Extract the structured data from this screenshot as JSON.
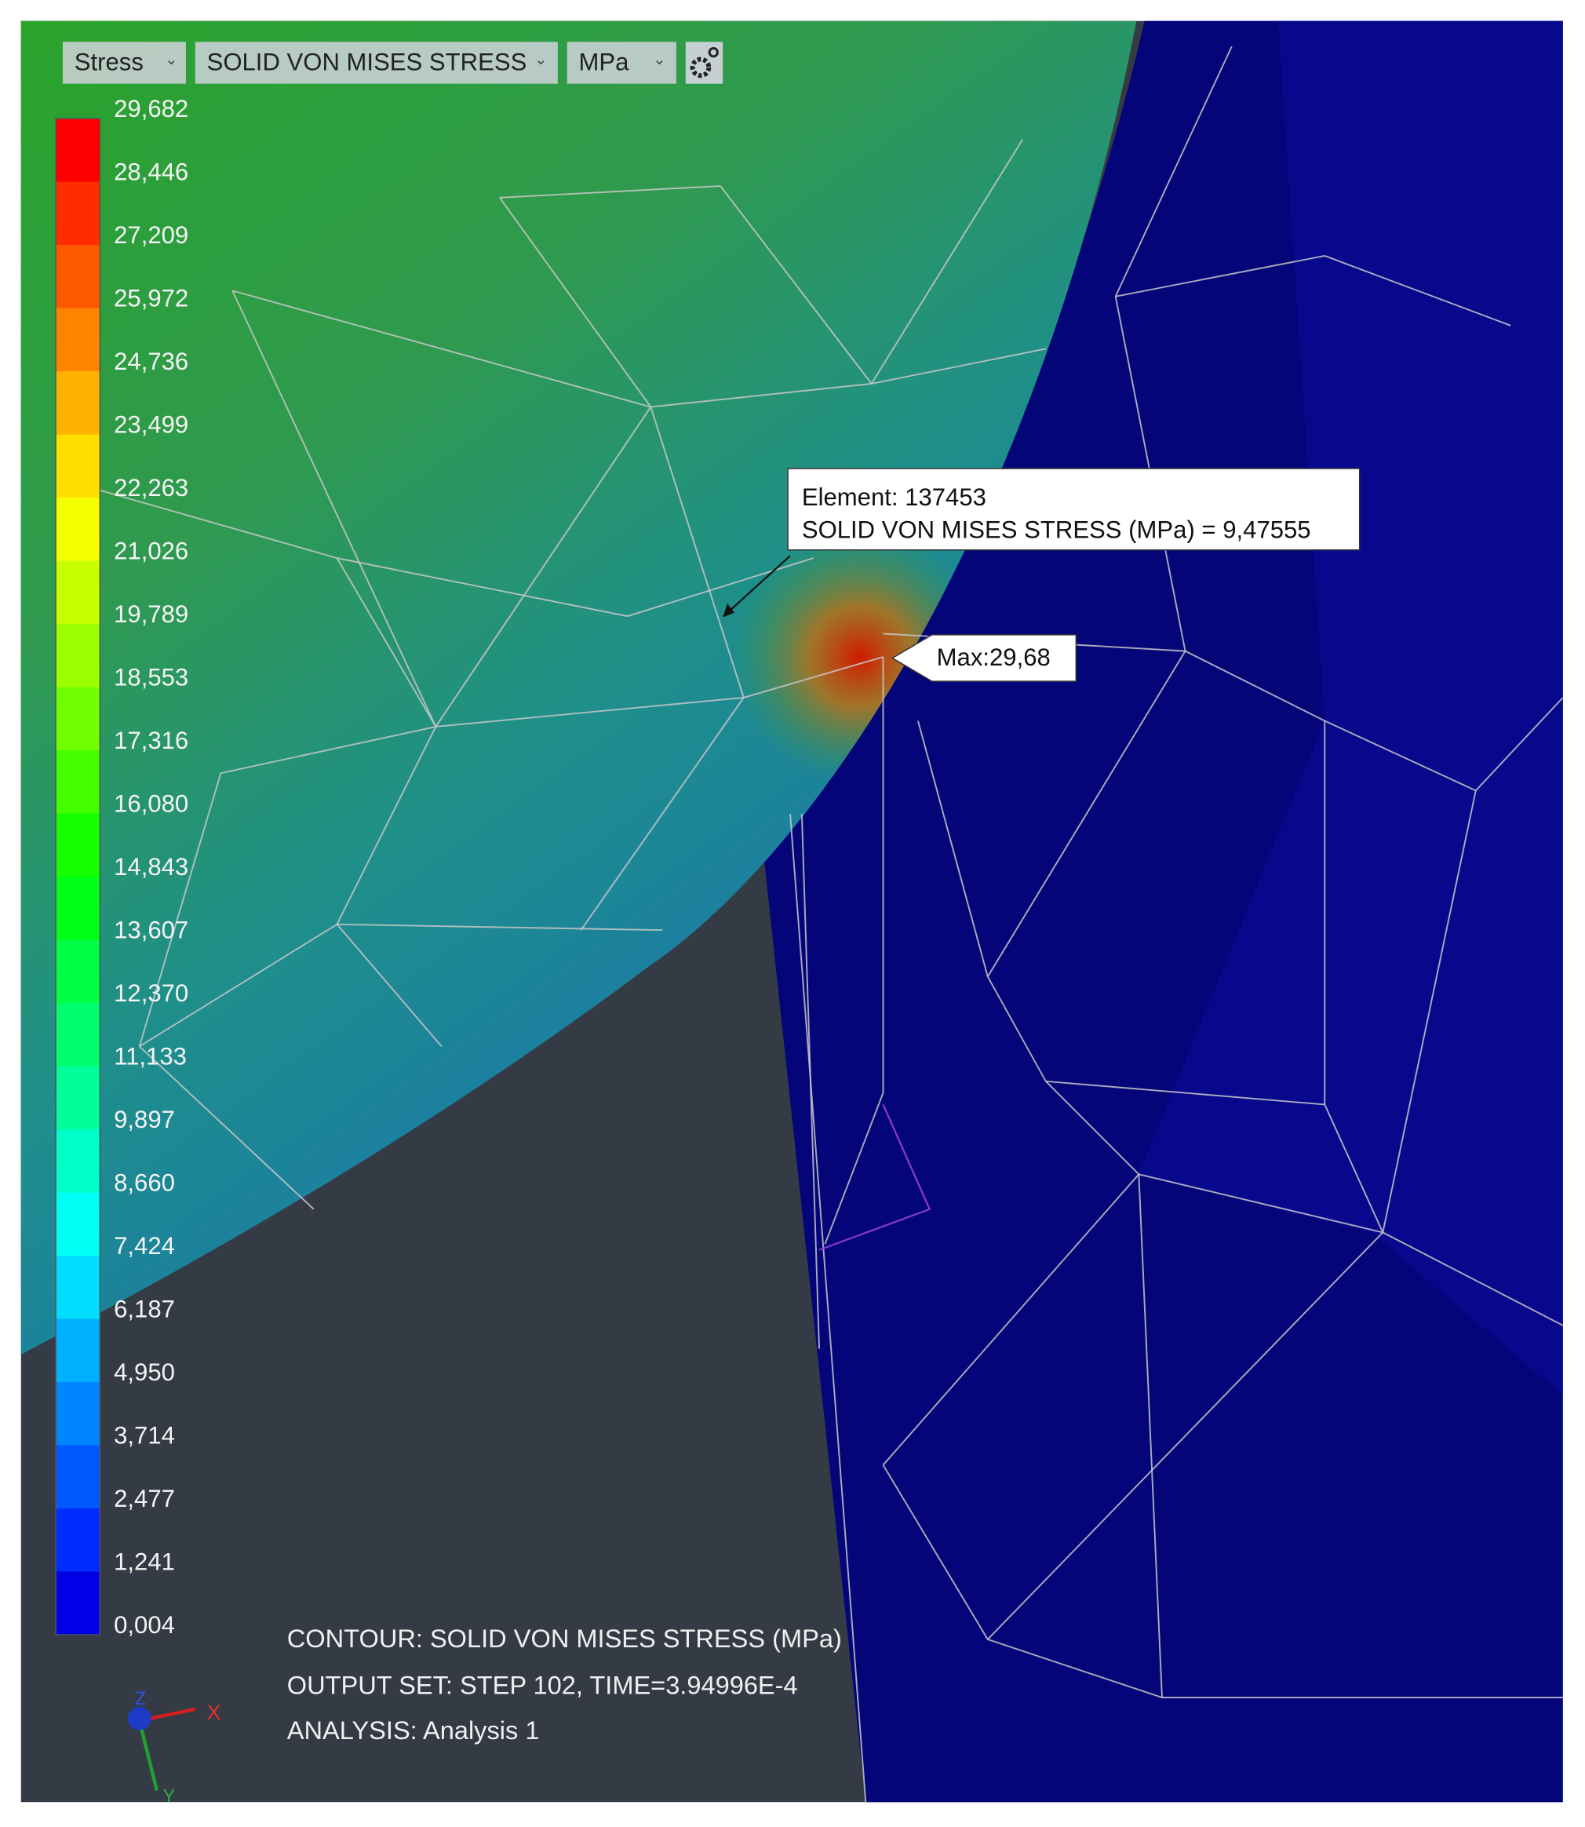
{
  "toolbar": {
    "result_type": "Stress",
    "component": "SOLID VON MISES STRESS",
    "unit": "MPa"
  },
  "legend": {
    "labels": [
      "29,682",
      "28,446",
      "27,209",
      "25,972",
      "24,736",
      "23,499",
      "22,263",
      "21,026",
      "19,789",
      "18,553",
      "17,316",
      "16,080",
      "14,843",
      "13,607",
      "12,370",
      "11,133",
      "9,897",
      "8,660",
      "7,424",
      "6,187",
      "4,950",
      "3,714",
      "2,477",
      "1,241",
      "0,004"
    ]
  },
  "probe": {
    "element": "Element: 137453",
    "value": "SOLID VON MISES STRESS (MPa)  = 9,47555"
  },
  "max_label": "Max:29,68",
  "info": {
    "contour": "CONTOUR: SOLID VON MISES STRESS (MPa)",
    "output_set": "OUTPUT SET: STEP 102, TIME=3.94996E-4",
    "analysis": "ANALYSIS: Analysis 1"
  },
  "triad": {
    "z": "Z",
    "x": "X",
    "y": "Y"
  }
}
